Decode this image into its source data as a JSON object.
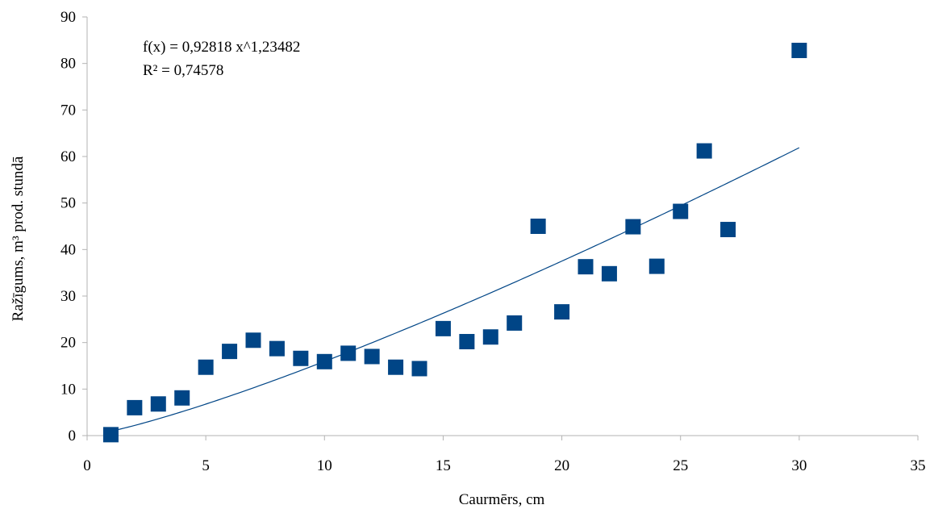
{
  "chart_data": {
    "type": "scatter",
    "xlabel": "Caurmērs, cm",
    "ylabel": "Ražīgums, m³ prod. stundā",
    "xlim": [
      0,
      35
    ],
    "ylim": [
      0,
      90
    ],
    "x_ticks": [
      0,
      5,
      10,
      15,
      20,
      25,
      30,
      35
    ],
    "y_ticks": [
      0,
      10,
      20,
      30,
      40,
      50,
      60,
      70,
      80,
      90
    ],
    "grid": false,
    "legend": "none",
    "marker": "square",
    "marker_color": "#004586",
    "series": [
      {
        "points": [
          {
            "x": 1,
            "y": 0.2
          },
          {
            "x": 2,
            "y": 6.0
          },
          {
            "x": 3,
            "y": 6.8
          },
          {
            "x": 4,
            "y": 8.1
          },
          {
            "x": 5,
            "y": 14.7
          },
          {
            "x": 6,
            "y": 18.1
          },
          {
            "x": 7,
            "y": 20.5
          },
          {
            "x": 8,
            "y": 18.7
          },
          {
            "x": 9,
            "y": 16.6
          },
          {
            "x": 10,
            "y": 15.9
          },
          {
            "x": 11,
            "y": 17.7
          },
          {
            "x": 12,
            "y": 17.0
          },
          {
            "x": 13,
            "y": 14.7
          },
          {
            "x": 14,
            "y": 14.4
          },
          {
            "x": 15,
            "y": 23.0
          },
          {
            "x": 16,
            "y": 20.2
          },
          {
            "x": 17,
            "y": 21.2
          },
          {
            "x": 18,
            "y": 24.2
          },
          {
            "x": 19,
            "y": 45.0
          },
          {
            "x": 20,
            "y": 26.6
          },
          {
            "x": 21,
            "y": 36.3
          },
          {
            "x": 22,
            "y": 34.8
          },
          {
            "x": 23,
            "y": 44.9
          },
          {
            "x": 24,
            "y": 36.4
          },
          {
            "x": 25,
            "y": 48.2
          },
          {
            "x": 26,
            "y": 61.2
          },
          {
            "x": 27,
            "y": 44.3
          },
          {
            "x": 30,
            "y": 82.8
          }
        ]
      }
    ],
    "trendline": {
      "type": "power",
      "a": 0.92818,
      "b": 1.23482,
      "x_range": [
        1,
        30
      ],
      "color": "#004586"
    },
    "annotations": {
      "equation": "f(x) = 0,92818 x^1,23482",
      "r_squared": "R² = 0,74578"
    }
  }
}
